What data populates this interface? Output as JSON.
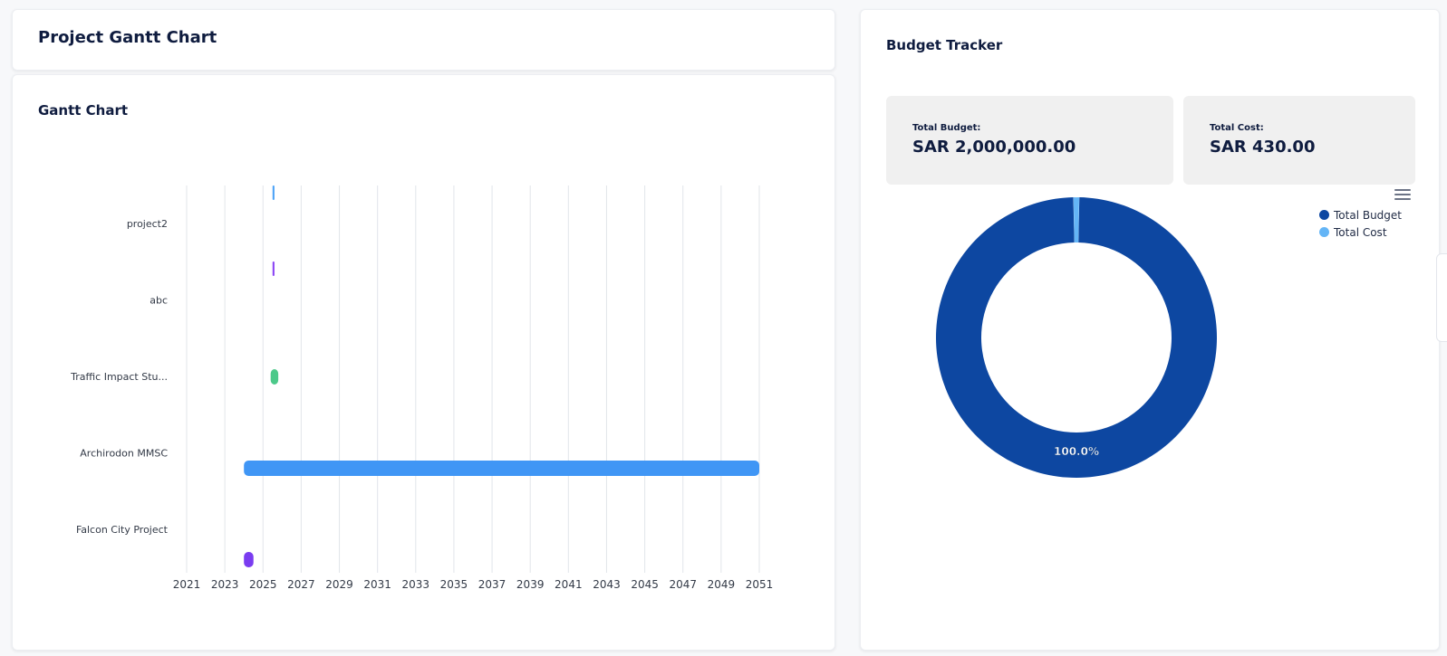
{
  "header": {
    "title": "Project Gantt Chart"
  },
  "gantt": {
    "title": "Gantt Chart",
    "chart_data": {
      "type": "bar",
      "orientation": "horizontal-gantt",
      "x_ticks": [
        "2021",
        "2023",
        "2025",
        "2027",
        "2029",
        "2031",
        "2033",
        "2035",
        "2037",
        "2039",
        "2041",
        "2043",
        "2045",
        "2047",
        "2049",
        "2051"
      ],
      "xlim": [
        2021,
        2051
      ],
      "grid": "vertical",
      "tasks": [
        {
          "label": "project2",
          "start": 2025.5,
          "end": 2025.6,
          "color": "#4da3f7"
        },
        {
          "label": "abc",
          "start": 2025.5,
          "end": 2025.6,
          "color": "#8b45f5"
        },
        {
          "label": "Traffic Impact Stu...",
          "start": 2025.4,
          "end": 2025.8,
          "color": "#4cc98a"
        },
        {
          "label": "Archirodon MMSC",
          "start": 2024.0,
          "end": 2051.0,
          "color": "#4096f5"
        },
        {
          "label": "Falcon City Project",
          "start": 2024.0,
          "end": 2024.5,
          "color": "#7a3cf0"
        }
      ]
    }
  },
  "budget": {
    "title": "Budget Tracker",
    "total_budget_label": "Total Budget:",
    "total_budget_value": "SAR 2,000,000.00",
    "total_cost_label": "Total Cost:",
    "total_cost_value": "SAR 430.00",
    "menu_icon": "hamburger-menu-icon",
    "chart_data": {
      "type": "pie",
      "variant": "donut",
      "series": [
        {
          "name": "Total Budget",
          "value": 2000000,
          "color": "#0d47a1"
        },
        {
          "name": "Total Cost",
          "value": 430,
          "color": "#64b5f6"
        }
      ],
      "data_labels": [
        "100.0%"
      ],
      "legend_placement": "top-right"
    }
  }
}
